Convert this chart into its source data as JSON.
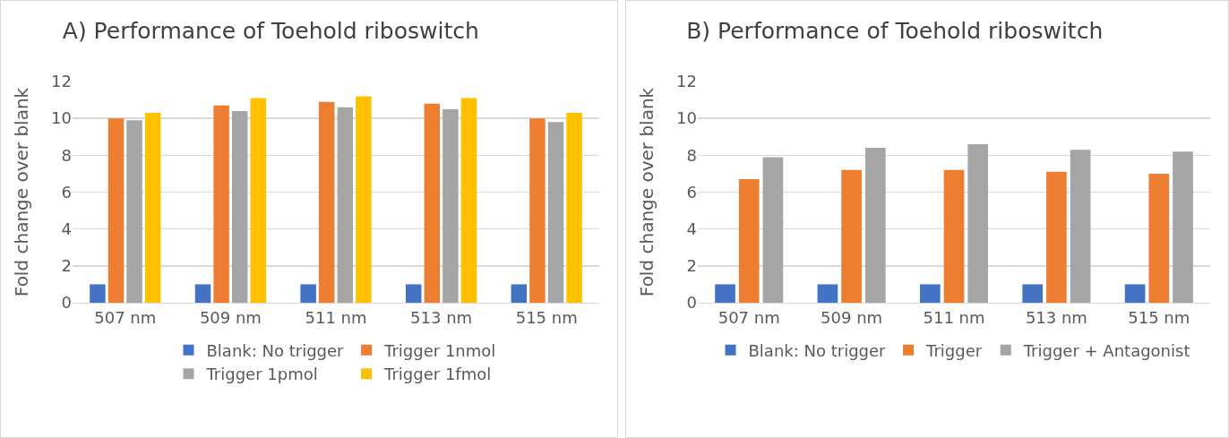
{
  "chart_data": [
    {
      "type": "bar",
      "title": "A) Performance of Toehold riboswitch",
      "ylabel": "Fold change over blank",
      "categories": [
        "507 nm",
        "509 nm",
        "511 nm",
        "513 nm",
        "515 nm"
      ],
      "ylim": [
        0,
        12
      ],
      "yticks": [
        0,
        2,
        4,
        6,
        8,
        10,
        12
      ],
      "grid": "y",
      "legend": "bottom",
      "series": [
        {
          "name": "Blank: No trigger",
          "color": "#4472c4",
          "values": [
            1,
            1,
            1,
            1,
            1
          ]
        },
        {
          "name": "Trigger 1nmol",
          "color": "#ed7d31",
          "values": [
            10.0,
            10.7,
            10.9,
            10.8,
            10.0
          ]
        },
        {
          "name": "Trigger 1pmol",
          "color": "#a5a5a5",
          "values": [
            9.9,
            10.4,
            10.6,
            10.5,
            9.8
          ]
        },
        {
          "name": "Trigger 1fmol",
          "color": "#ffc000",
          "values": [
            10.3,
            11.1,
            11.2,
            11.1,
            10.3
          ]
        }
      ]
    },
    {
      "type": "bar",
      "title": "B) Performance of Toehold riboswitch",
      "ylabel": "Fold change over blank",
      "categories": [
        "507 nm",
        "509 nm",
        "511 nm",
        "513 nm",
        "515 nm"
      ],
      "ylim": [
        0,
        12
      ],
      "yticks": [
        0,
        2,
        4,
        6,
        8,
        10,
        12
      ],
      "grid": "y",
      "legend": "bottom",
      "series": [
        {
          "name": "Blank: No trigger",
          "color": "#4472c4",
          "values": [
            1,
            1,
            1,
            1,
            1
          ]
        },
        {
          "name": "Trigger",
          "color": "#ed7d31",
          "values": [
            6.7,
            7.2,
            7.2,
            7.1,
            7.0
          ]
        },
        {
          "name": "Trigger + Antagonist",
          "color": "#a5a5a5",
          "values": [
            7.9,
            8.4,
            8.6,
            8.3,
            8.2
          ]
        }
      ]
    }
  ]
}
